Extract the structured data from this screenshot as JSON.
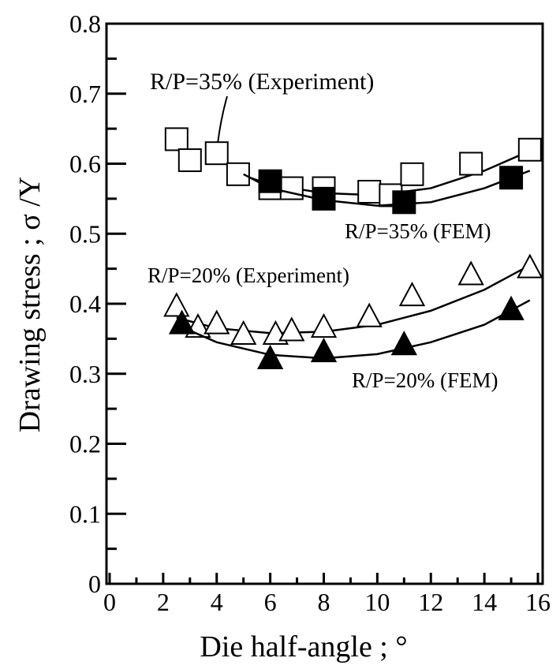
{
  "chart_data": {
    "type": "scatter",
    "xlabel": "Die half-angle ; °",
    "ylabel": "Drawing stress ; σ /Y",
    "xlim": [
      0,
      16
    ],
    "xticks": [
      0,
      2,
      4,
      6,
      8,
      10,
      12,
      14,
      16
    ],
    "xminorticks": [
      1,
      3,
      5,
      7,
      9,
      11,
      13,
      15
    ],
    "ylim": [
      0,
      0.8
    ],
    "yticks": [
      0,
      0.1,
      0.2,
      0.3,
      0.4,
      0.5,
      0.6,
      0.7,
      0.8
    ],
    "yminorticks": [
      0.05,
      0.15,
      0.25,
      0.35,
      0.45,
      0.55,
      0.65,
      0.75
    ],
    "series": [
      {
        "name": "R/P=35% (Experiment)",
        "marker": "square",
        "filled": false,
        "color": "#000000",
        "x": [
          2.5,
          3,
          4,
          4.8,
          6,
          6.8,
          8,
          9.7,
          10.5,
          11.3,
          13.5,
          15.7
        ],
        "values": [
          0.635,
          0.605,
          0.615,
          0.585,
          0.565,
          0.565,
          0.565,
          0.56,
          0.555,
          0.585,
          0.6,
          0.62
        ],
        "fit_x": [
          4.5,
          6,
          8,
          10,
          12,
          14,
          15.5
        ],
        "fit_values": [
          0.59,
          0.57,
          0.558,
          0.555,
          0.565,
          0.59,
          0.615
        ]
      },
      {
        "name": "R/P=35% (FEM)",
        "marker": "square",
        "filled": true,
        "color": "#000000",
        "x": [
          6,
          8,
          11,
          15
        ],
        "values": [
          0.575,
          0.55,
          0.545,
          0.58
        ],
        "fit_x": [
          5,
          6,
          8,
          10,
          12,
          14,
          15.7
        ],
        "fit_values": [
          0.585,
          0.565,
          0.548,
          0.54,
          0.545,
          0.565,
          0.59
        ]
      },
      {
        "name": "R/P=20% (Experiment)",
        "marker": "triangle",
        "filled": false,
        "color": "#000000",
        "x": [
          2.5,
          3.3,
          4,
          5,
          6.2,
          6.8,
          8,
          9.7,
          11.3,
          13.5,
          15.7
        ],
        "values": [
          0.395,
          0.365,
          0.37,
          0.355,
          0.355,
          0.36,
          0.365,
          0.38,
          0.41,
          0.44,
          0.45
        ],
        "fit_x": [
          2.5,
          4,
          6,
          8,
          10,
          12,
          14,
          15.7
        ],
        "fit_values": [
          0.38,
          0.365,
          0.358,
          0.36,
          0.37,
          0.39,
          0.42,
          0.455
        ]
      },
      {
        "name": "R/P=20% (FEM)",
        "marker": "triangle",
        "filled": true,
        "color": "#000000",
        "x": [
          2.7,
          6,
          8,
          11,
          15
        ],
        "values": [
          0.37,
          0.32,
          0.33,
          0.34,
          0.39
        ],
        "fit_x": [
          2.5,
          4,
          6,
          8,
          10,
          12,
          14,
          15.7
        ],
        "fit_values": [
          0.37,
          0.345,
          0.327,
          0.322,
          0.328,
          0.345,
          0.37,
          0.405
        ]
      }
    ]
  }
}
